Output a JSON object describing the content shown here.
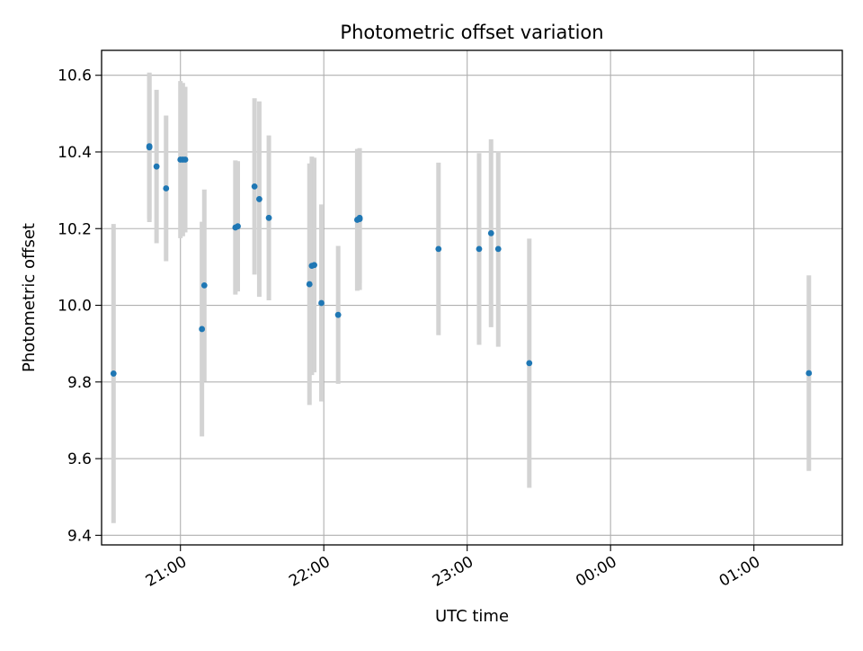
{
  "chart_data": {
    "type": "scatter",
    "title": "Photometric offset variation",
    "xlabel": "UTC time",
    "ylabel": "Photometric offset",
    "x_axis_type": "time",
    "xlim": [
      "20:27",
      "01:37"
    ],
    "ylim": [
      9.375,
      10.665
    ],
    "grid": true,
    "x_tick_labels": [
      "21:00",
      "22:00",
      "23:00",
      "00:00",
      "01:00"
    ],
    "x_ticks": [
      "21:00",
      "22:00",
      "23:00",
      "00:00",
      "01:00"
    ],
    "y_ticks": [
      9.4,
      9.6,
      9.8,
      10.0,
      10.2,
      10.4,
      10.6
    ],
    "y_tick_labels": [
      "9.4",
      "9.6",
      "9.8",
      "10.0",
      "10.2",
      "10.4",
      "10.6"
    ],
    "marker_color": "#1f77b4",
    "errorbar_color": "#d3d3d3",
    "points": [
      {
        "x": "20:32",
        "y": 9.822,
        "err": 0.39
      },
      {
        "x": "20:47",
        "y": 10.412,
        "err": 0.195
      },
      {
        "x": "20:47",
        "y": 10.415,
        "err": 0.19
      },
      {
        "x": "20:50",
        "y": 10.362,
        "err": 0.2
      },
      {
        "x": "20:54",
        "y": 10.305,
        "err": 0.19
      },
      {
        "x": "21:00",
        "y": 10.38,
        "err": 0.205
      },
      {
        "x": "21:01",
        "y": 10.38,
        "err": 0.2
      },
      {
        "x": "21:02",
        "y": 10.38,
        "err": 0.19
      },
      {
        "x": "21:09",
        "y": 9.938,
        "err": 0.28
      },
      {
        "x": "21:10",
        "y": 10.052,
        "err": 0.25
      },
      {
        "x": "21:23",
        "y": 10.203,
        "err": 0.175
      },
      {
        "x": "21:24",
        "y": 10.206,
        "err": 0.17
      },
      {
        "x": "21:31",
        "y": 10.31,
        "err": 0.23
      },
      {
        "x": "21:33",
        "y": 10.277,
        "err": 0.255
      },
      {
        "x": "21:37",
        "y": 10.228,
        "err": 0.215
      },
      {
        "x": "21:54",
        "y": 10.055,
        "err": 0.315
      },
      {
        "x": "21:55",
        "y": 10.103,
        "err": 0.285
      },
      {
        "x": "21:56",
        "y": 10.105,
        "err": 0.28
      },
      {
        "x": "21:59",
        "y": 10.006,
        "err": 0.257
      },
      {
        "x": "22:06",
        "y": 9.975,
        "err": 0.18
      },
      {
        "x": "22:14",
        "y": 10.223,
        "err": 0.185
      },
      {
        "x": "22:15",
        "y": 10.225,
        "err": 0.185
      },
      {
        "x": "22:15",
        "y": 10.228,
        "err": 0.17
      },
      {
        "x": "22:48",
        "y": 10.147,
        "err": 0.225
      },
      {
        "x": "23:05",
        "y": 10.147,
        "err": 0.25
      },
      {
        "x": "23:10",
        "y": 10.188,
        "err": 0.245
      },
      {
        "x": "23:13",
        "y": 10.147,
        "err": 0.255
      },
      {
        "x": "23:26",
        "y": 9.849,
        "err": 0.325
      },
      {
        "x": "01:23",
        "y": 9.823,
        "err": 0.255
      }
    ]
  }
}
